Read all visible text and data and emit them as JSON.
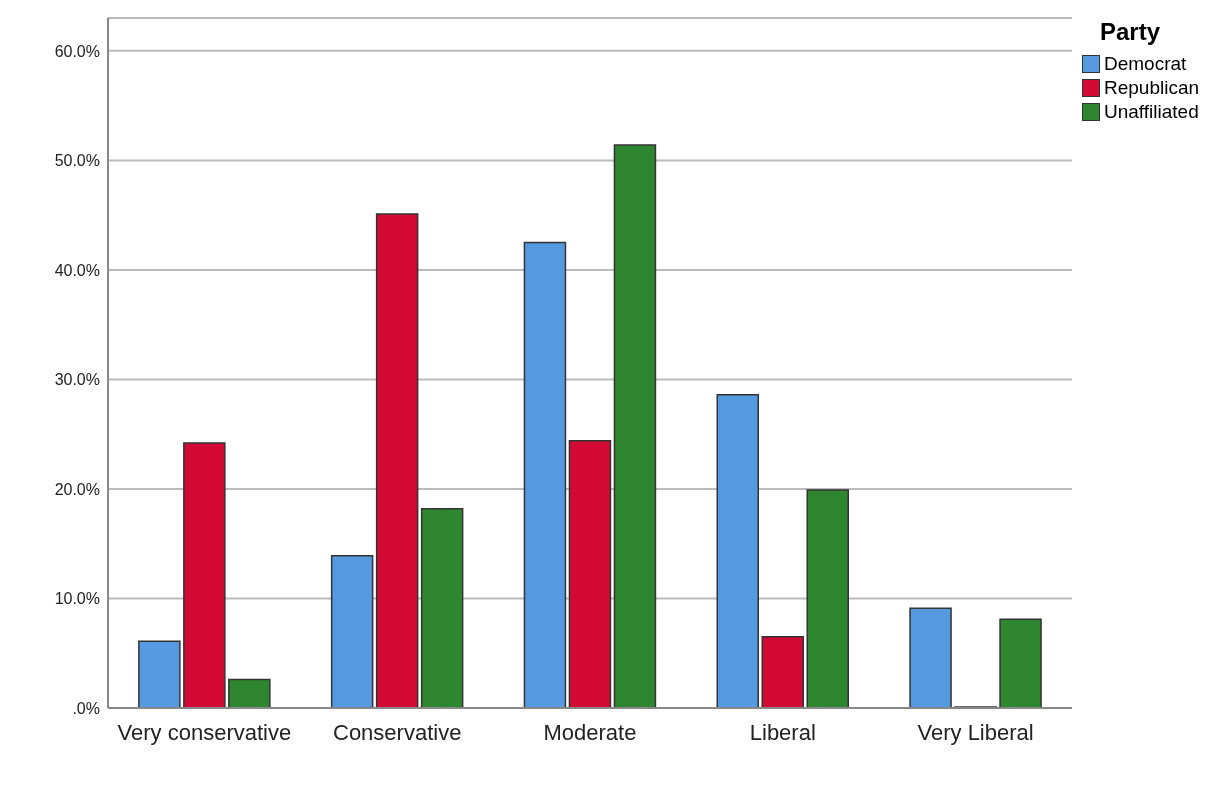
{
  "chart_data": {
    "type": "bar",
    "legend_title": "Party",
    "categories": [
      "Very conservative",
      "Conservative",
      "Moderate",
      "Liberal",
      "Very Liberal"
    ],
    "series": [
      {
        "name": "Democrat",
        "color": "#5599e0",
        "values": [
          6.1,
          13.9,
          42.5,
          28.6,
          9.1
        ]
      },
      {
        "name": "Republican",
        "color": "#d20a35",
        "values": [
          24.2,
          45.1,
          24.4,
          6.5,
          0.1
        ]
      },
      {
        "name": "Unaffiliated",
        "color": "#2e8631",
        "values": [
          2.6,
          18.2,
          51.4,
          19.9,
          8.1
        ]
      }
    ],
    "ylim": [
      0,
      63
    ],
    "yticks": [
      {
        "value": 0,
        "label": ".0%"
      },
      {
        "value": 10,
        "label": "10.0%"
      },
      {
        "value": 20,
        "label": "20.0%"
      },
      {
        "value": 30,
        "label": "30.0%"
      },
      {
        "value": 40,
        "label": "40.0%"
      },
      {
        "value": 50,
        "label": "50.0%"
      },
      {
        "value": 60,
        "label": "60.0%"
      }
    ],
    "grid": "y",
    "legend": "top right"
  }
}
